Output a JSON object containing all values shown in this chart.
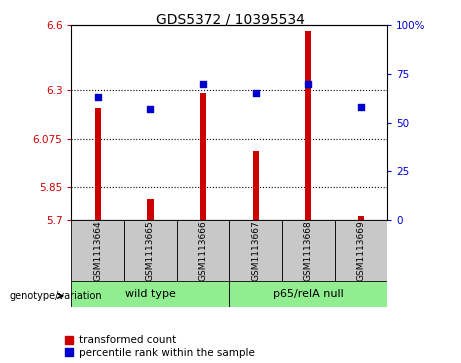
{
  "title": "GDS5372 / 10395534",
  "samples": [
    "GSM1113664",
    "GSM1113665",
    "GSM1113666",
    "GSM1113667",
    "GSM1113668",
    "GSM1113669"
  ],
  "transformed_counts": [
    6.215,
    5.795,
    6.285,
    6.02,
    6.575,
    5.715
  ],
  "percentile_ranks": [
    63,
    57,
    70,
    65,
    70,
    58
  ],
  "ylim_left": [
    5.7,
    6.6
  ],
  "ylim_right": [
    0,
    100
  ],
  "yticks_left": [
    5.7,
    5.85,
    6.075,
    6.3,
    6.6
  ],
  "ytick_labels_left": [
    "5.7",
    "5.85",
    "6.075",
    "6.3",
    "6.6"
  ],
  "yticks_right": [
    0,
    25,
    50,
    75,
    100
  ],
  "ytick_labels_right": [
    "0",
    "25",
    "50",
    "75",
    "100%"
  ],
  "hlines": [
    5.85,
    6.075,
    6.3
  ],
  "bar_color": "#cc0000",
  "dot_color": "#0000cc",
  "bar_width": 0.12,
  "sample_box_color": "#c8c8c8",
  "group_color": "#90ee90",
  "legend_red_label": "transformed count",
  "legend_blue_label": "percentile rank within the sample",
  "genotype_label": "genotype/variation",
  "title_fontsize": 10,
  "tick_fontsize": 7.5,
  "sample_fontsize": 6.5,
  "group_fontsize": 8,
  "legend_fontsize": 7.5
}
